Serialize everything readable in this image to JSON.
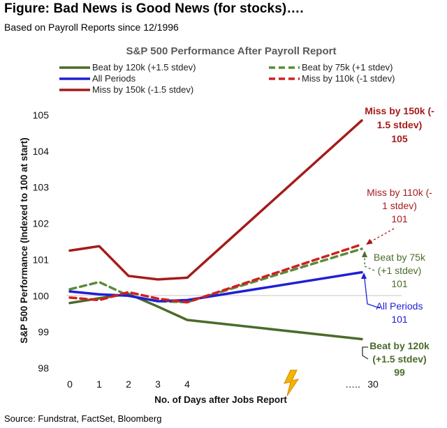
{
  "header": {
    "title": "Figure: Bad News is Good News (for stocks)….",
    "subtitle": "Based on Payroll Reports since 12/1996"
  },
  "footer": {
    "source": "Source: Fundstrat, FactSet, Bloomberg"
  },
  "chart_data": {
    "type": "line",
    "title": "S&P 500 Performance After Payroll Report",
    "xlabel": "No. of Days after Jobs Report",
    "ylabel": "S&P 500 Performance (Indexed to 100 at start)",
    "x_tick_labels": [
      "0",
      "1",
      "2",
      "3",
      "4",
      "…..",
      "30"
    ],
    "y_ticks": [
      98,
      99,
      100,
      101,
      102,
      103,
      104,
      105
    ],
    "ylim": [
      98,
      105
    ],
    "grid": false,
    "reference_line": 100,
    "legend_position": "top",
    "series": [
      {
        "name": "Beat by 120k (+1.5 stdev)",
        "color": "#4a6b2a",
        "dashed": false,
        "values": [
          99.8,
          99.93,
          100.05,
          99.7,
          99.33,
          98.8
        ]
      },
      {
        "name": "Beat by 75k (+1 stdev)",
        "color": "#5b8a3a",
        "dashed": true,
        "values": [
          100.18,
          100.38,
          100.0,
          99.85,
          99.82,
          101.3
        ]
      },
      {
        "name": "All Periods",
        "color": "#1f1fd6",
        "dashed": false,
        "values": [
          100.12,
          100.04,
          100.0,
          99.85,
          99.88,
          100.65
        ]
      },
      {
        "name": "Miss by 110k (-1 stdev)",
        "color": "#d11f1f",
        "dashed": true,
        "values": [
          99.95,
          99.88,
          100.1,
          99.92,
          99.82,
          101.42
        ]
      },
      {
        "name": "Miss by 150k (-1.5 stdev)",
        "color": "#a51b1b",
        "dashed": false,
        "values": [
          101.25,
          101.37,
          100.55,
          100.45,
          100.5,
          104.85
        ]
      }
    ],
    "annotations": [
      {
        "lines": [
          "Miss by 150k (-",
          "1.5 stdev)",
          "105"
        ],
        "color": "#a51b1b",
        "bold": true
      },
      {
        "lines": [
          "Miss by 110k (-",
          "1 stdev)",
          "101"
        ],
        "color": "#a51b1b",
        "bold": false
      },
      {
        "lines": [
          "Beat by 75k",
          "(+1 stdev)",
          "101"
        ],
        "color": "#4a6b2a",
        "bold": false
      },
      {
        "lines": [
          "All Periods",
          "101"
        ],
        "color": "#1f1fd6",
        "bold": false
      },
      {
        "lines": [
          "Beat by 120k",
          "(+1.5 stdev)",
          "99"
        ],
        "color": "#4a6b2a",
        "bold": true
      }
    ]
  }
}
